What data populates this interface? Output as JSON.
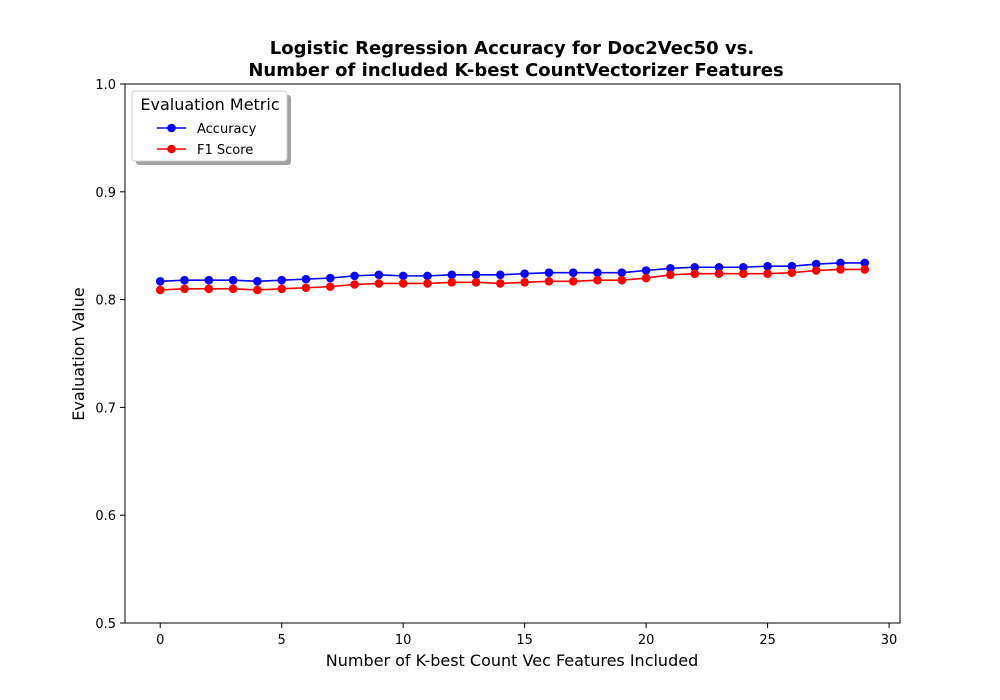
{
  "chart_data": {
    "type": "line",
    "title_line1": "Logistic Regression Accuracy for Doc2Vec50 vs.",
    "title_line2": "Number of included K-best CountVectorizer Features",
    "xlabel": "Number of K-best Count Vec Features Included",
    "ylabel": "Evaluation Value",
    "xlim": [
      -1.45,
      30.45
    ],
    "ylim": [
      0.5,
      1.0
    ],
    "xticks": [
      0,
      5,
      10,
      15,
      20,
      25,
      30
    ],
    "yticks": [
      0.5,
      0.6,
      0.7,
      0.8,
      0.9,
      1.0
    ],
    "xtick_labels": [
      "0",
      "5",
      "10",
      "15",
      "20",
      "25",
      "30"
    ],
    "ytick_labels": [
      "0.5",
      "0.6",
      "0.7",
      "0.8",
      "0.9",
      "1.0"
    ],
    "grid": false,
    "legend": {
      "title": "Evaluation Metric",
      "placement": "top-left"
    },
    "x": [
      0,
      1,
      2,
      3,
      4,
      5,
      6,
      7,
      8,
      9,
      10,
      11,
      12,
      13,
      14,
      15,
      16,
      17,
      18,
      19,
      20,
      21,
      22,
      23,
      24,
      25,
      26,
      27,
      28,
      29
    ],
    "series": [
      {
        "name": "Accuracy",
        "color": "#0000ff",
        "values": [
          0.817,
          0.818,
          0.818,
          0.818,
          0.817,
          0.818,
          0.819,
          0.82,
          0.822,
          0.823,
          0.822,
          0.822,
          0.823,
          0.823,
          0.823,
          0.824,
          0.825,
          0.825,
          0.825,
          0.825,
          0.827,
          0.829,
          0.83,
          0.83,
          0.83,
          0.831,
          0.831,
          0.833,
          0.834,
          0.834
        ]
      },
      {
        "name": "F1 Score",
        "color": "#ff0000",
        "values": [
          0.809,
          0.81,
          0.81,
          0.81,
          0.809,
          0.81,
          0.811,
          0.812,
          0.814,
          0.815,
          0.815,
          0.815,
          0.816,
          0.816,
          0.815,
          0.816,
          0.817,
          0.817,
          0.818,
          0.818,
          0.82,
          0.823,
          0.824,
          0.824,
          0.824,
          0.824,
          0.825,
          0.827,
          0.828,
          0.828
        ]
      }
    ]
  }
}
